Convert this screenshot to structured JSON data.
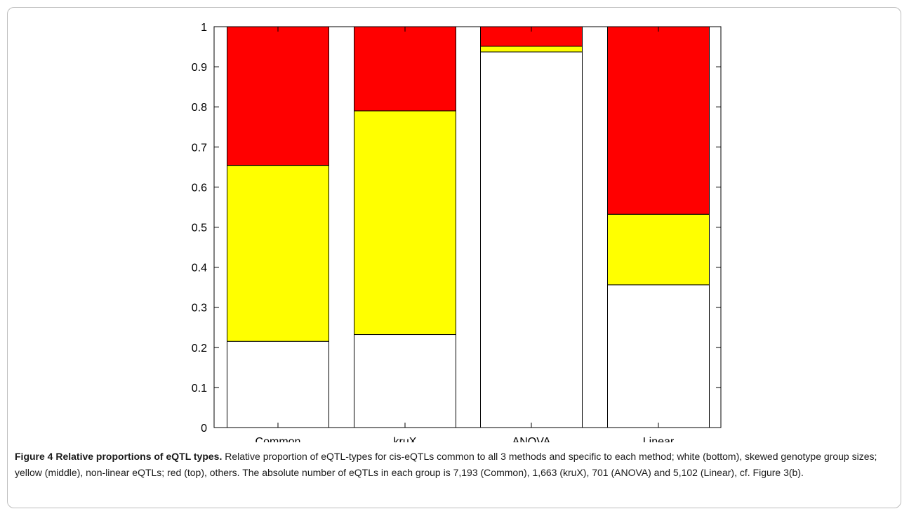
{
  "chart_data": {
    "type": "bar",
    "stacked": true,
    "categories": [
      "Common",
      "kruX",
      "ANOVA",
      "Linear"
    ],
    "series": [
      {
        "color": "#ffffff",
        "values": [
          0.215,
          0.232,
          0.937,
          0.356
        ]
      },
      {
        "color": "#ffff00",
        "values": [
          0.439,
          0.558,
          0.014,
          0.176
        ]
      },
      {
        "color": "#ff0000",
        "values": [
          0.346,
          0.21,
          0.049,
          0.468
        ]
      }
    ],
    "ylim": [
      0,
      1
    ],
    "yticks": [
      "0",
      "0.1",
      "0.2",
      "0.3",
      "0.4",
      "0.5",
      "0.6",
      "0.7",
      "0.8",
      "0.9",
      "1"
    ],
    "xlabel": "",
    "ylabel": "",
    "grid": false
  },
  "caption": {
    "lead": "Figure 4 Relative proportions of eQTL types.",
    "body": "Relative proportion of eQTL-types for cis-eQTLs common to all 3 methods and specific to each method; white (bottom), skewed genotype group sizes; yellow (middle), non-linear eQTLs; red (top), others. The absolute number of eQTLs in each group is 7,193 (Common), 1,663 (kruX), 701 (ANOVA) and 5,102 (Linear), cf. Figure 3(b)."
  }
}
